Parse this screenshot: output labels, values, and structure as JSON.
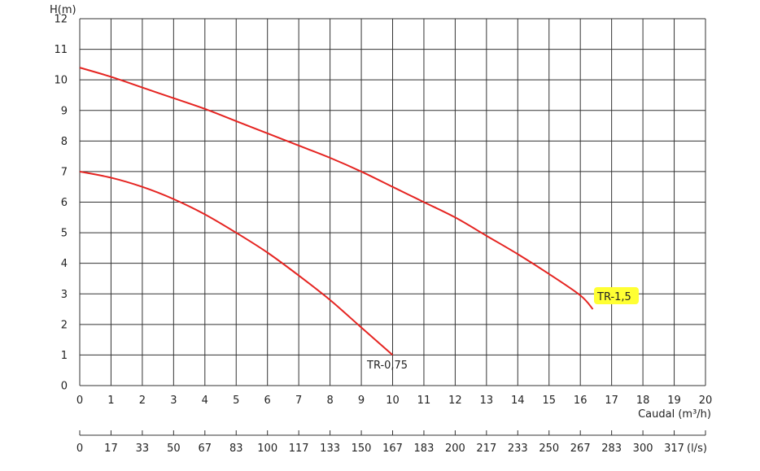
{
  "chart_data": {
    "type": "line",
    "ylabel": "H(m)",
    "xlabel": "Caudal (m³/h)",
    "secondary_unit": "(l/s)",
    "xlim": [
      0,
      20
    ],
    "ylim": [
      0,
      12
    ],
    "grid": true,
    "x_ticks": [
      "0",
      "1",
      "2",
      "3",
      "4",
      "5",
      "6",
      "7",
      "8",
      "9",
      "10",
      "11",
      "12",
      "13",
      "14",
      "15",
      "16",
      "17",
      "18",
      "19",
      "20"
    ],
    "y_ticks": [
      "0",
      "1",
      "2",
      "3",
      "4",
      "5",
      "6",
      "7",
      "8",
      "9",
      "10",
      "11",
      "12"
    ],
    "secondary_ticks": [
      "0",
      "17",
      "33",
      "50",
      "67",
      "83",
      "100",
      "117",
      "133",
      "150",
      "167",
      "183",
      "200",
      "217",
      "233",
      "250",
      "267",
      "283",
      "300",
      "317"
    ],
    "series": [
      {
        "name": "TR-0,75",
        "color": "#e52421",
        "x": [
          0,
          1,
          2,
          3,
          4,
          5,
          6,
          7,
          8,
          9,
          10
        ],
        "y": [
          7.0,
          6.8,
          6.5,
          6.1,
          5.6,
          5.0,
          4.35,
          3.6,
          2.8,
          1.9,
          1.0
        ]
      },
      {
        "name": "TR-1,5",
        "color": "#e52421",
        "highlight": "#ffff33",
        "x": [
          0,
          1,
          2,
          3,
          4,
          5,
          6,
          7,
          8,
          9,
          10,
          11,
          12,
          13,
          14,
          15,
          16,
          16.4
        ],
        "y": [
          10.4,
          10.1,
          9.75,
          9.4,
          9.05,
          8.65,
          8.25,
          7.85,
          7.45,
          7.0,
          6.5,
          6.0,
          5.5,
          4.9,
          4.3,
          3.65,
          2.95,
          2.5
        ]
      }
    ]
  }
}
